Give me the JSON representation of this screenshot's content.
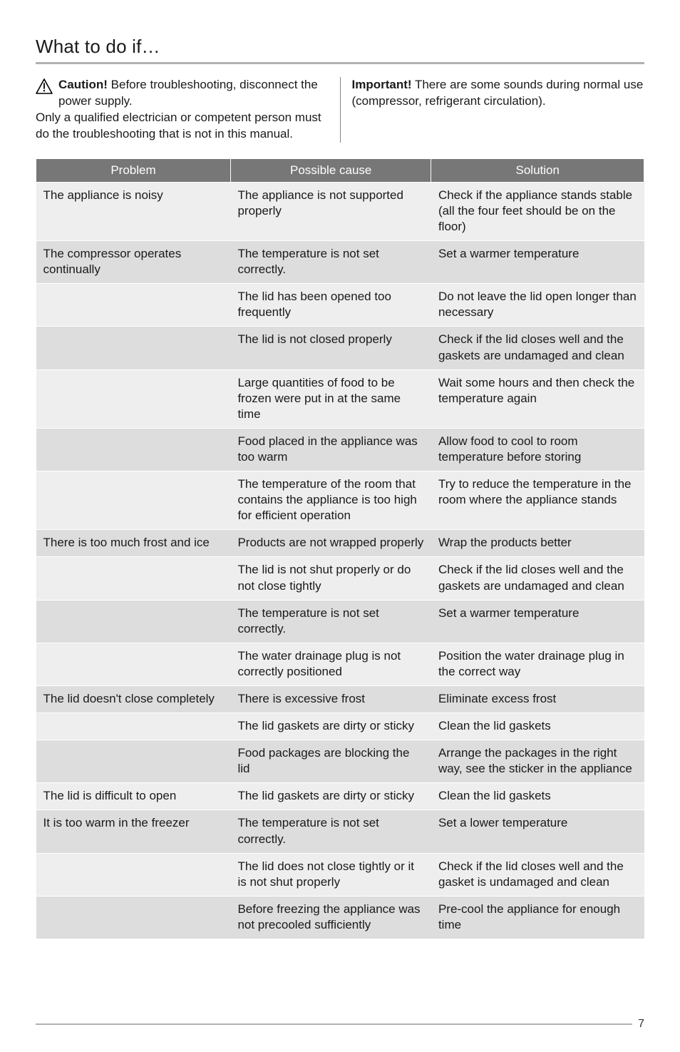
{
  "title": "What to do if…",
  "intro": {
    "caution_label": "Caution!",
    "caution_text": "  Before troubleshooting, disconnect the power supply.",
    "caution_below": "Only a qualified electrician or competent person must do the troubleshooting that is not in this manual.",
    "important_label": "Important!",
    "important_text": "  There are some sounds during normal use (compressor, refrigerant circulation)."
  },
  "columns": [
    "Problem",
    "Possible cause",
    "Solution"
  ],
  "table": [
    {
      "stripe": "odd",
      "problem": "The appliance is noisy",
      "cause": "The appliance is not supported properly",
      "solution": "Check if the appliance stands stable (all the four feet should be on the floor)"
    },
    {
      "stripe": "even",
      "problem": "The compressor operates continually",
      "cause": "The temperature is not set correctly.",
      "solution": "Set a warmer temperature"
    },
    {
      "stripe": "odd",
      "problem": "",
      "cause": "The lid has been opened too frequently",
      "solution": "Do not leave the lid open longer than necessary"
    },
    {
      "stripe": "even",
      "problem": "",
      "cause": "The lid is not closed properly",
      "solution": "Check if the lid closes well and the gaskets are undamaged and clean"
    },
    {
      "stripe": "odd",
      "problem": "",
      "cause": "Large quantities of food to be frozen were put in at the same time",
      "solution": "Wait some hours and then check the temperature again"
    },
    {
      "stripe": "even",
      "problem": "",
      "cause": "Food placed in the appliance was too warm",
      "solution": "Allow food to cool to room temperature before storing"
    },
    {
      "stripe": "odd",
      "problem": "",
      "cause": "The temperature of the room that contains the appliance is too high for efficient operation",
      "solution": "Try to reduce the temperature in the room where the appliance stands"
    },
    {
      "stripe": "even",
      "problem": "There is too much frost and ice",
      "cause": "Products are not wrapped properly",
      "solution": "Wrap the products better"
    },
    {
      "stripe": "odd",
      "problem": "",
      "cause": "The lid is not shut properly or do not close tightly",
      "solution": "Check if the lid closes well and the gaskets are undamaged and clean"
    },
    {
      "stripe": "even",
      "problem": "",
      "cause": "The temperature is not set correctly.",
      "solution": "Set a warmer temperature"
    },
    {
      "stripe": "odd",
      "problem": "",
      "cause": "The water drainage plug is not correctly positioned",
      "solution": "Position the water drainage plug in the correct way"
    },
    {
      "stripe": "even",
      "problem": "The lid doesn't close completely",
      "cause": "There is excessive frost",
      "solution": "Eliminate excess frost"
    },
    {
      "stripe": "odd",
      "problem": "",
      "cause": "The lid gaskets are dirty or sticky",
      "solution": "Clean the lid gaskets"
    },
    {
      "stripe": "even",
      "problem": "",
      "cause": "Food packages are blocking the lid",
      "solution": "Arrange the packages in the right way, see the sticker in the appliance"
    },
    {
      "stripe": "odd",
      "problem": "The lid is difficult to open",
      "cause": "The lid gaskets are dirty or sticky",
      "solution": "Clean the lid gaskets"
    },
    {
      "stripe": "even",
      "problem": "It is too warm in the freezer",
      "cause": "The temperature is not set correctly.",
      "solution": "Set a lower temperature"
    },
    {
      "stripe": "odd",
      "problem": "",
      "cause": "The lid does not close tightly or it is not shut properly",
      "solution": "Check if the lid closes well and the gasket is undamaged and clean"
    },
    {
      "stripe": "even",
      "problem": "",
      "cause": "Before freezing the appliance was not precooled sufficiently",
      "solution": "Pre-cool the appliance for enough time"
    }
  ],
  "page_number": "7",
  "colors": {
    "header_bg": "#777777",
    "odd_bg": "#eeeeee",
    "even_bg": "#dddddd",
    "rule": "#b0b0b0"
  }
}
